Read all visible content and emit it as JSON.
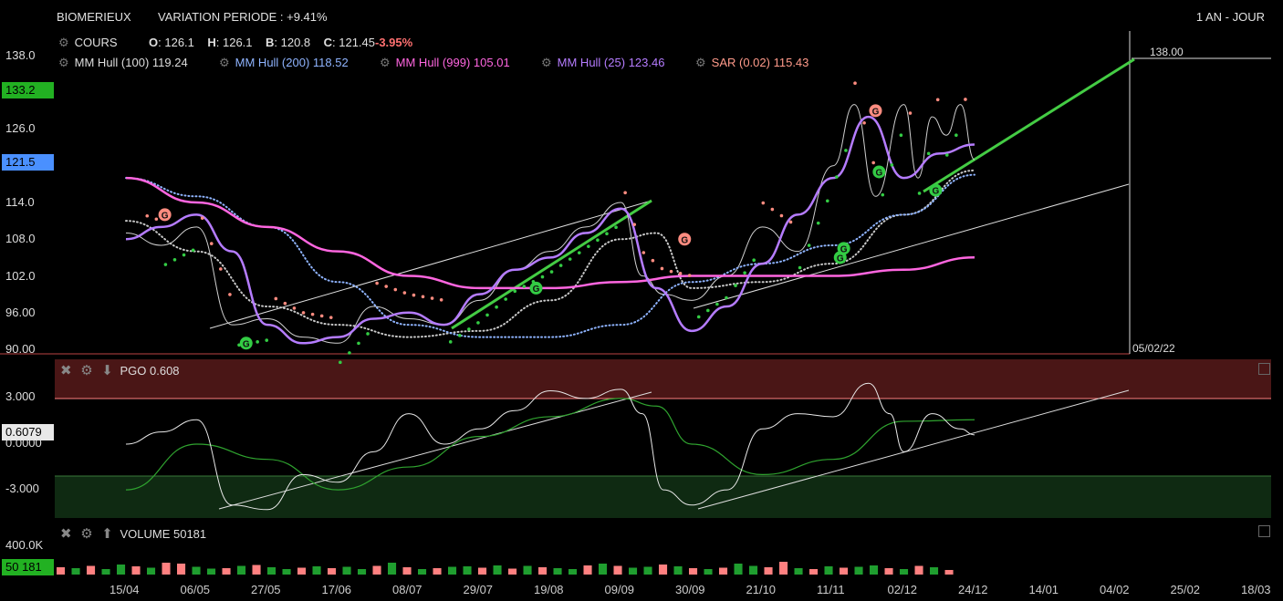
{
  "header": {
    "symbol": "BIOMERIEUX",
    "variation": "VARIATION PERIODE : +9.41%",
    "period": "1 AN - JOUR"
  },
  "legend": {
    "cours_label": "COURS",
    "o": "126.1",
    "h": "126.1",
    "b": "120.8",
    "c": "121.45",
    "change": "-3.95%",
    "hull100_label": "MM Hull (100)",
    "hull100_value": "119.24",
    "hull200_label": "MM Hull (200)",
    "hull200_value": "118.52",
    "hull999_label": "MM Hull (999)",
    "hull999_value": "105.01",
    "hull25_label": "MM Hull (25)",
    "hull25_value": "123.46",
    "sar_label": "SAR (0.02)",
    "sar_value": "115.43"
  },
  "price_axis": {
    "ticks": [
      "138.0",
      "126.0",
      "114.0",
      "108.0",
      "102.0",
      "96.00",
      "90.00"
    ],
    "badge_high": "133.2",
    "badge_last": "121.5",
    "target": "138.00",
    "date_marker": "05/02/22"
  },
  "pgo_panel": {
    "label": "PGO 0.608",
    "ticks": [
      "3.000",
      "0.0000",
      "-3.000"
    ],
    "badge": "0.6079"
  },
  "volume_panel": {
    "label": "VOLUME 50181",
    "tick": "400.0K",
    "badge": "50 181"
  },
  "x_axis": {
    "ticks": [
      "15/04",
      "06/05",
      "27/05",
      "17/06",
      "08/07",
      "29/07",
      "19/08",
      "09/09",
      "30/09",
      "21/10",
      "11/11",
      "02/12",
      "24/12",
      "14/01",
      "04/02",
      "25/02",
      "18/03"
    ]
  },
  "colors": {
    "close": "#cfcfcf",
    "hull100": "#c9c9c9",
    "hull200": "#8fb4ff",
    "hull999": "#ff66e0",
    "hull25": "#b57cff",
    "sar_up": "#33cc44",
    "sar_down": "#ff8c80",
    "up_volume": "#1f9e2f",
    "down_volume": "#ff8080",
    "pgo_overbought_zone": "#4a1616",
    "pgo_oversold_zone": "#0f2a12"
  },
  "chart_data": [
    {
      "type": "line",
      "title": "BIOMERIEUX",
      "x": [
        "15/04",
        "06/05",
        "27/05",
        "17/06",
        "08/07",
        "29/07",
        "19/08",
        "09/09",
        "30/09",
        "21/10",
        "11/11",
        "02/12",
        "24/12",
        "14/01",
        "04/02",
        "25/02",
        "18/03"
      ],
      "ylim": [
        90,
        140
      ],
      "series": [
        {
          "name": "COURS",
          "x": [
            0,
            0.5,
            1,
            1.5,
            2,
            2.5,
            3,
            3.5,
            4,
            4.5,
            5,
            5.5,
            6,
            6.5,
            7,
            7.3,
            7.6,
            8,
            8.5,
            9,
            9.5,
            10,
            10.3,
            10.6,
            11,
            11.2,
            11.4,
            11.6,
            11.8,
            12
          ],
          "y": [
            109,
            107,
            110,
            94,
            95,
            92,
            91,
            97,
            95,
            94,
            98,
            103,
            106,
            110,
            114,
            102,
            99,
            98,
            102,
            110,
            106,
            120,
            130,
            115,
            130,
            118,
            128,
            125,
            130,
            121
          ]
        },
        {
          "name": "MM Hull (100)",
          "x": [
            0,
            1,
            2,
            3,
            4,
            5,
            6,
            7,
            7.5,
            8,
            9,
            10,
            11,
            12
          ],
          "y": [
            111,
            106,
            97,
            94,
            92,
            93,
            98,
            108,
            109,
            100,
            101,
            104,
            112,
            119.24
          ]
        },
        {
          "name": "MM Hull (200)",
          "x": [
            0,
            1,
            2,
            3,
            4,
            5,
            6,
            7,
            8,
            9,
            10,
            11,
            12
          ],
          "y": [
            118,
            115,
            110,
            101,
            94,
            92,
            92,
            94,
            101,
            104,
            107,
            112,
            118.52
          ]
        },
        {
          "name": "MM Hull (999)",
          "x": [
            0,
            1,
            2,
            3,
            4,
            5,
            6,
            7,
            8,
            9,
            10,
            11,
            12
          ],
          "y": [
            118,
            114,
            110,
            106,
            102,
            100,
            100,
            101,
            102,
            102,
            102,
            103,
            105.01
          ]
        },
        {
          "name": "MM Hull (25)",
          "x": [
            0,
            0.5,
            1,
            1.5,
            2,
            2.5,
            3,
            3.5,
            4,
            4.5,
            5,
            5.5,
            6,
            6.5,
            7,
            7.5,
            8,
            8.5,
            9,
            9.5,
            10,
            10.5,
            11,
            11.5,
            12
          ],
          "y": [
            108,
            110,
            112,
            106,
            94,
            91,
            92,
            95,
            96,
            94,
            99,
            103,
            105,
            109,
            113,
            100,
            93,
            97,
            104,
            112,
            118,
            128,
            118,
            122,
            123.46
          ]
        }
      ],
      "annotations": {
        "projection_line": {
          "from": [
            11.6,
            117
          ],
          "to": [
            14.9,
            138
          ]
        },
        "target_level": 138.0,
        "vertical_marker": "05/02/22"
      }
    },
    {
      "type": "line",
      "title": "PGO 0.608",
      "ylim": [
        -5,
        6
      ],
      "levels": [
        3,
        -2.2
      ],
      "series": [
        {
          "name": "PGO",
          "x": [
            0,
            0.5,
            1,
            1.5,
            2,
            2.5,
            3,
            3.5,
            4,
            4.5,
            5,
            5.5,
            6,
            6.5,
            7,
            7.3,
            7.6,
            8,
            8.5,
            9,
            9.5,
            10,
            10.5,
            10.8,
            11,
            11.4,
            11.8,
            12
          ],
          "y": [
            0,
            0.8,
            1.6,
            -4,
            -4.3,
            -2,
            -2.5,
            -0.5,
            2,
            0,
            1,
            2.2,
            3.5,
            3,
            3.6,
            2,
            -3,
            -4,
            -3,
            1,
            2,
            1.8,
            4,
            2,
            -0.5,
            2,
            1,
            0.608
          ]
        },
        {
          "name": "Signal",
          "x": [
            0,
            1,
            2,
            3,
            4,
            5,
            6,
            7,
            7.5,
            8,
            9,
            10,
            11,
            12
          ],
          "y": [
            -3,
            0,
            -1,
            -3,
            -1.5,
            0.5,
            1.8,
            3,
            2.5,
            0,
            -2,
            -1,
            1.5,
            1.6
          ]
        }
      ]
    },
    {
      "type": "bar",
      "title": "VOLUME 50181",
      "ylim": [
        0,
        450000
      ],
      "values": [
        80000,
        70000,
        95000,
        60000,
        110000,
        90000,
        75000,
        130000,
        120000,
        85000,
        65000,
        70000,
        95000,
        105000,
        80000,
        60000,
        75000,
        90000,
        70000,
        85000,
        60000,
        95000,
        130000,
        80000,
        60000,
        70000,
        85000,
        90000,
        75000,
        100000,
        65000,
        95000,
        80000,
        70000,
        60000,
        100000,
        120000,
        95000,
        75000,
        85000,
        110000,
        90000,
        70000,
        60000,
        75000,
        120000,
        95000,
        80000,
        140000,
        70000,
        60000,
        90000,
        75000,
        85000,
        100000,
        70000,
        60000,
        95000,
        80000,
        50181
      ],
      "up_down": [
        "d",
        "u",
        "d",
        "u",
        "u",
        "d",
        "u",
        "d",
        "d",
        "u",
        "u",
        "d",
        "u",
        "d",
        "u",
        "u",
        "d",
        "u",
        "d",
        "u",
        "u",
        "d",
        "u",
        "d",
        "u",
        "d",
        "u",
        "u",
        "d",
        "u",
        "d",
        "u",
        "d",
        "u",
        "u",
        "d",
        "u",
        "d",
        "u",
        "u",
        "d",
        "u",
        "d",
        "u",
        "d",
        "u",
        "u",
        "d",
        "d",
        "u",
        "d",
        "u",
        "d",
        "u",
        "u",
        "d",
        "u",
        "d",
        "u",
        "d"
      ]
    }
  ]
}
